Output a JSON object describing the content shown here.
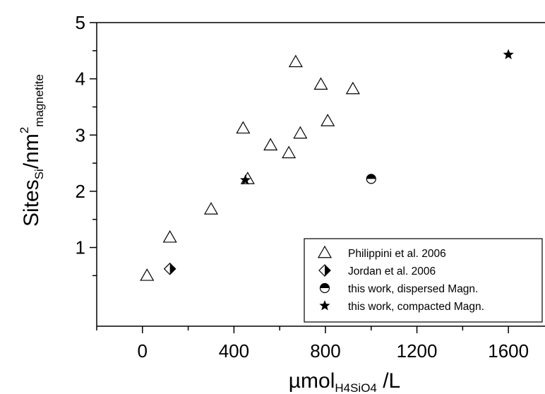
{
  "chart_data": {
    "type": "scatter",
    "xlabel": {
      "main": "µmol",
      "sub": "H4SiO4",
      "tail": " /L"
    },
    "ylabel": {
      "main": "Sites",
      "sub": "Si",
      "mid": "/nm",
      "sup": "2",
      "sub2": "magnetite"
    },
    "xlim": [
      -200,
      1760
    ],
    "ylim": [
      -0.4,
      5
    ],
    "xticks": [
      0,
      400,
      800,
      1200,
      1600
    ],
    "xtick_labels": [
      "0",
      "400",
      "800",
      "1200",
      "1600"
    ],
    "yticks": [
      1,
      2,
      3,
      4,
      5
    ],
    "ytick_labels": [
      "1",
      "2",
      "3",
      "4",
      "5"
    ],
    "grid": false,
    "legend_position": "bottom-right",
    "series": [
      {
        "name": "Philippini et al. 2006",
        "marker": "open-triangle",
        "x": [
          20,
          120,
          300,
          440,
          460,
          560,
          640,
          670,
          690,
          780,
          810,
          920
        ],
        "y": [
          0.5,
          1.18,
          1.68,
          3.12,
          2.22,
          2.82,
          2.68,
          4.3,
          3.03,
          3.9,
          3.25,
          3.82
        ]
      },
      {
        "name": "Jordan et al. 2006",
        "marker": "half-filled-diamond",
        "x": [
          120
        ],
        "y": [
          0.62
        ]
      },
      {
        "name": "this work, dispersed Magn.",
        "marker": "half-filled-circle",
        "x": [
          1000
        ],
        "y": [
          2.22
        ]
      },
      {
        "name": "this work, compacted Magn.",
        "marker": "filled-star",
        "x": [
          450,
          1600
        ],
        "y": [
          2.2,
          4.43
        ]
      }
    ]
  }
}
